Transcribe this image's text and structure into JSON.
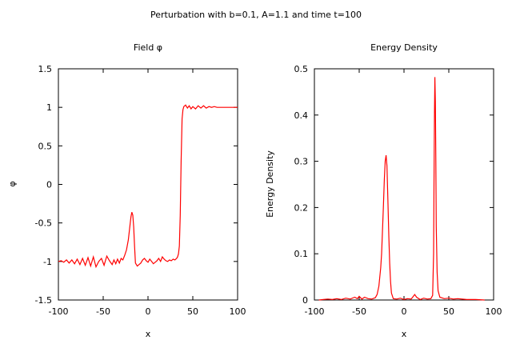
{
  "figure_title": "Perturbation with b=0.1, A=1.1 and time t=100",
  "colors": {
    "series": "#ff0000",
    "axis": "#000000",
    "background": "#ffffff"
  },
  "chart_data": [
    {
      "type": "line",
      "title": "Field φ",
      "xlabel": "x",
      "ylabel": "φ",
      "xlim": [
        -100,
        100
      ],
      "ylim": [
        -1.5,
        1.5
      ],
      "xticks": [
        -100,
        -50,
        0,
        50,
        100
      ],
      "xtick_labels": [
        "-100",
        "-50",
        "0",
        "50",
        "100"
      ],
      "yticks": [
        -1.5,
        -1,
        -0.5,
        0,
        0.5,
        1,
        1.5
      ],
      "ytick_labels": [
        "-1.5",
        "-1",
        "-0.5",
        "0",
        "0.5",
        "1",
        "1.5"
      ],
      "grid": false,
      "series": [
        {
          "name": "phi",
          "x": [
            -100,
            -97,
            -94,
            -91,
            -88,
            -85,
            -82,
            -79,
            -76,
            -73,
            -70,
            -67,
            -64,
            -61,
            -58,
            -55,
            -52,
            -49,
            -46,
            -43,
            -40,
            -38,
            -36,
            -34,
            -32,
            -30,
            -28,
            -26,
            -24,
            -22,
            -21,
            -20,
            -19,
            -18,
            -17,
            -16,
            -15,
            -14,
            -12,
            -10,
            -8,
            -6,
            -4,
            -2,
            0,
            2,
            4,
            6,
            8,
            10,
            12,
            14,
            16,
            18,
            20,
            22,
            24,
            26,
            28,
            30,
            32,
            33,
            34,
            35,
            36,
            37,
            38,
            39,
            40,
            42,
            44,
            46,
            48,
            50,
            53,
            56,
            59,
            62,
            65,
            68,
            71,
            74,
            77,
            80,
            85,
            90,
            95,
            100
          ],
          "y": [
            -1.0,
            -0.99,
            -1.01,
            -0.98,
            -1.02,
            -0.98,
            -1.03,
            -0.97,
            -1.04,
            -0.96,
            -1.05,
            -0.95,
            -1.06,
            -0.94,
            -1.07,
            -1.0,
            -0.96,
            -1.05,
            -0.93,
            -0.99,
            -1.04,
            -0.98,
            -1.03,
            -0.97,
            -1.02,
            -0.96,
            -0.98,
            -0.92,
            -0.85,
            -0.72,
            -0.62,
            -0.52,
            -0.42,
            -0.36,
            -0.4,
            -0.55,
            -0.8,
            -1.02,
            -1.06,
            -1.04,
            -1.02,
            -0.98,
            -0.96,
            -0.99,
            -1.01,
            -0.97,
            -1.0,
            -1.03,
            -1.01,
            -0.99,
            -0.96,
            -1.0,
            -0.94,
            -0.97,
            -0.99,
            -1.0,
            -0.98,
            -0.99,
            -0.97,
            -0.98,
            -0.96,
            -0.94,
            -0.9,
            -0.8,
            -0.4,
            0.3,
            0.85,
            0.97,
            1.01,
            1.03,
            0.99,
            1.02,
            0.98,
            1.01,
            0.98,
            1.02,
            0.99,
            1.02,
            0.99,
            1.01,
            1.0,
            1.01,
            1.0,
            1.0,
            1.0,
            1.0,
            1.0,
            1.0
          ]
        }
      ]
    },
    {
      "type": "line",
      "title": "Energy Density",
      "xlabel": "x",
      "ylabel": "Energy Density",
      "xlim": [
        -100,
        100
      ],
      "ylim": [
        0,
        0.5
      ],
      "xticks": [
        -100,
        -50,
        0,
        50,
        100
      ],
      "xtick_labels": [
        "-100",
        "-50",
        "0",
        "50",
        "100"
      ],
      "yticks": [
        0,
        0.1,
        0.2,
        0.3,
        0.4,
        0.5
      ],
      "ytick_labels": [
        "0",
        "0.1",
        "0.2",
        "0.3",
        "0.4",
        "0.5"
      ],
      "grid": false,
      "series": [
        {
          "name": "energy",
          "x": [
            -95,
            -90,
            -85,
            -80,
            -75,
            -70,
            -65,
            -60,
            -55,
            -52,
            -50,
            -47,
            -44,
            -40,
            -36,
            -32,
            -30,
            -28,
            -26,
            -25,
            -24,
            -23,
            -22,
            -21,
            -20,
            -19,
            -18,
            -17,
            -16,
            -15,
            -14,
            -12,
            -8,
            -4,
            0,
            4,
            8,
            10,
            12,
            14,
            18,
            22,
            26,
            30,
            32,
            33,
            33.5,
            34,
            34.5,
            35,
            35.5,
            36,
            37,
            38,
            40,
            45,
            50,
            55,
            60,
            70,
            80,
            90
          ],
          "y": [
            0.0,
            0.001,
            0.002,
            0.001,
            0.003,
            0.001,
            0.004,
            0.002,
            0.006,
            0.003,
            0.008,
            0.002,
            0.006,
            0.003,
            0.002,
            0.005,
            0.012,
            0.03,
            0.07,
            0.1,
            0.15,
            0.2,
            0.26,
            0.3,
            0.313,
            0.29,
            0.22,
            0.14,
            0.08,
            0.04,
            0.015,
            0.003,
            0.002,
            0.004,
            0.001,
            0.003,
            0.002,
            0.007,
            0.012,
            0.006,
            0.001,
            0.004,
            0.002,
            0.003,
            0.01,
            0.1,
            0.25,
            0.405,
            0.482,
            0.43,
            0.3,
            0.16,
            0.06,
            0.02,
            0.006,
            0.003,
            0.004,
            0.002,
            0.003,
            0.001,
            0.001,
            0.0
          ]
        }
      ]
    }
  ]
}
